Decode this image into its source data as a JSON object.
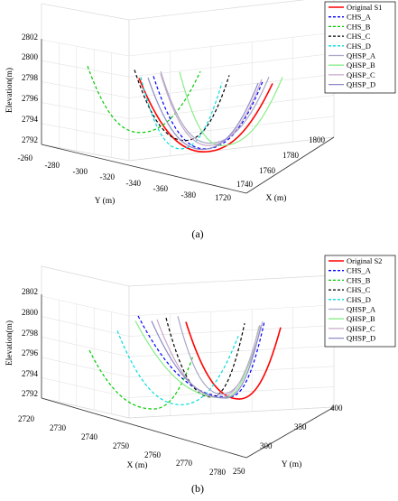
{
  "caption_a": "(a)",
  "caption_b": "(b)",
  "chart_data": [
    {
      "type": "line",
      "panel": "(a)",
      "zlabel": "Elevation(m)",
      "xlabel": "X (m)",
      "ylabel": "Y (m)",
      "z_ticks": [
        "2792",
        "2794",
        "2796",
        "2798",
        "2800",
        "2802"
      ],
      "x_ticks": [
        "1720",
        "1740",
        "1760",
        "1780",
        "1800"
      ],
      "y_ticks": [
        "-260",
        "-280",
        "-300",
        "-320",
        "-340",
        "-360",
        "-380"
      ],
      "zlim": [
        2792,
        2802
      ],
      "legend": "top-right",
      "series": [
        {
          "name": "Original S1",
          "color": "#ff0000",
          "dash": "solid",
          "min_elevation": 2792.6,
          "top_elevation": 2799.3
        },
        {
          "name": "CHS_A",
          "color": "#0000ff",
          "dash": "dashed",
          "min_elevation": 2792.8,
          "top_elevation": 2799.4
        },
        {
          "name": "CHS_B",
          "color": "#00cc00",
          "dash": "dashed",
          "min_elevation": 2793.6,
          "top_elevation": 2799.6
        },
        {
          "name": "CHS_C",
          "color": "#000000",
          "dash": "dashed",
          "min_elevation": 2793.0,
          "top_elevation": 2799.4
        },
        {
          "name": "CHS_D",
          "color": "#00dddd",
          "dash": "dashed",
          "min_elevation": 2792.8,
          "top_elevation": 2799.3
        },
        {
          "name": "QHSP_A",
          "color": "#a8a8c8",
          "dash": "solid",
          "min_elevation": 2793.0,
          "top_elevation": 2799.5
        },
        {
          "name": "QHSP_B",
          "color": "#88ee88",
          "dash": "solid",
          "min_elevation": 2792.9,
          "top_elevation": 2799.6
        },
        {
          "name": "QHSP_C",
          "color": "#c8a8c8",
          "dash": "solid",
          "min_elevation": 2792.9,
          "top_elevation": 2799.4
        },
        {
          "name": "QHSP_D",
          "color": "#8c8cc8",
          "dash": "solid",
          "min_elevation": 2792.7,
          "top_elevation": 2799.2
        }
      ]
    },
    {
      "type": "line",
      "panel": "(b)",
      "zlabel": "Elevation(m)",
      "xlabel": "X (m)",
      "ylabel": "Y (m)",
      "z_ticks": [
        "2792",
        "2794",
        "2796",
        "2798",
        "2800",
        "2802"
      ],
      "x_ticks": [
        "2720",
        "2730",
        "2740",
        "2750",
        "2760",
        "2770",
        "2780"
      ],
      "y_ticks": [
        "250",
        "300",
        "350",
        "400"
      ],
      "zlim": [
        2792,
        2802
      ],
      "legend": "top-right",
      "series": [
        {
          "name": "Original S2",
          "color": "#ff0000",
          "dash": "solid",
          "min_elevation": 2792.8,
          "top_elevation": 2800.0
        },
        {
          "name": "CHS_A",
          "color": "#0000ff",
          "dash": "dashed",
          "min_elevation": 2793.0,
          "top_elevation": 2800.6
        },
        {
          "name": "CHS_B",
          "color": "#00cc00",
          "dash": "dashed",
          "min_elevation": 2793.6,
          "top_elevation": 2799.0
        },
        {
          "name": "CHS_C",
          "color": "#000000",
          "dash": "dashed",
          "min_elevation": 2793.0,
          "top_elevation": 2800.4
        },
        {
          "name": "CHS_D",
          "color": "#00dddd",
          "dash": "dashed",
          "min_elevation": 2793.4,
          "top_elevation": 2800.3
        },
        {
          "name": "QHSP_A",
          "color": "#a8a8c8",
          "dash": "solid",
          "min_elevation": 2793.0,
          "top_elevation": 2800.3
        },
        {
          "name": "QHSP_B",
          "color": "#88ee88",
          "dash": "solid",
          "min_elevation": 2793.0,
          "top_elevation": 2800.2
        },
        {
          "name": "QHSP_C",
          "color": "#c8a8c8",
          "dash": "solid",
          "min_elevation": 2792.9,
          "top_elevation": 2800.2
        },
        {
          "name": "QHSP_D",
          "color": "#8c8cc8",
          "dash": "solid",
          "min_elevation": 2792.8,
          "top_elevation": 2800.0
        }
      ]
    }
  ]
}
